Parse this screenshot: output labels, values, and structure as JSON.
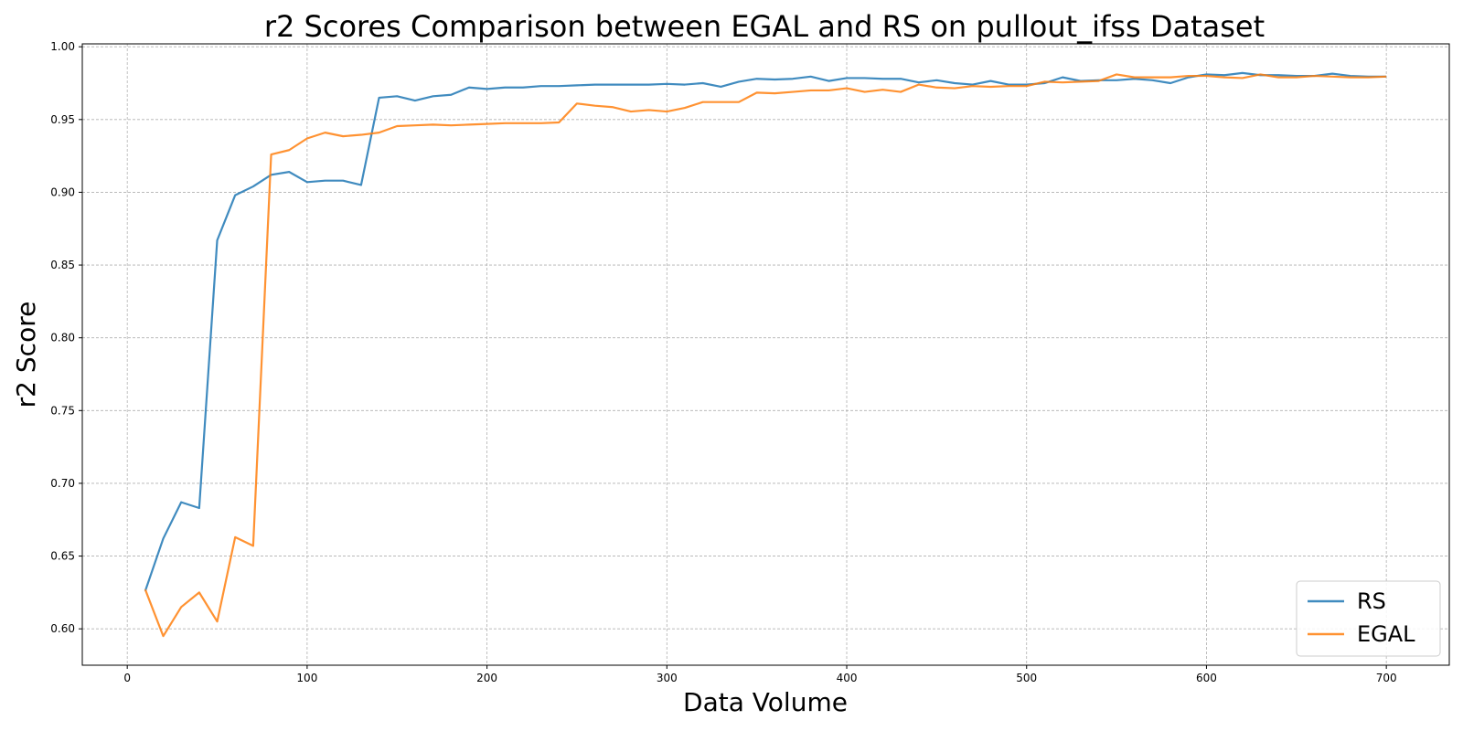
{
  "chart_data": {
    "type": "line",
    "title": "r2 Scores Comparison between EGAL and RS on pullout_ifss Dataset",
    "xlabel": "Data Volume",
    "ylabel": "r2 Score",
    "xlim": [
      -25,
      735
    ],
    "ylim": [
      0.575,
      1.002
    ],
    "xticks": [
      0,
      100,
      200,
      300,
      400,
      500,
      600,
      700
    ],
    "yticks": [
      0.6,
      0.65,
      0.7,
      0.75,
      0.8,
      0.85,
      0.9,
      0.95,
      1.0
    ],
    "grid": true,
    "legend_position": "bottom-right",
    "x": [
      10,
      20,
      30,
      40,
      50,
      60,
      70,
      80,
      90,
      100,
      110,
      120,
      130,
      140,
      150,
      160,
      170,
      180,
      190,
      200,
      210,
      220,
      230,
      240,
      250,
      260,
      270,
      280,
      290,
      300,
      310,
      320,
      330,
      340,
      350,
      360,
      370,
      380,
      390,
      400,
      410,
      420,
      430,
      440,
      450,
      460,
      470,
      480,
      490,
      500,
      510,
      520,
      530,
      540,
      550,
      560,
      570,
      580,
      590,
      600,
      610,
      620,
      630,
      640,
      650,
      660,
      670,
      680,
      690,
      700
    ],
    "series": [
      {
        "name": "RS",
        "color": "#1f77b4",
        "values": [
          0.626,
          0.662,
          0.687,
          0.683,
          0.867,
          0.898,
          0.904,
          0.912,
          0.914,
          0.907,
          0.908,
          0.908,
          0.905,
          0.965,
          0.966,
          0.963,
          0.966,
          0.967,
          0.972,
          0.971,
          0.972,
          0.972,
          0.973,
          0.973,
          0.9735,
          0.974,
          0.974,
          0.974,
          0.974,
          0.9745,
          0.974,
          0.975,
          0.9725,
          0.976,
          0.978,
          0.9775,
          0.978,
          0.9795,
          0.9765,
          0.9785,
          0.9785,
          0.978,
          0.978,
          0.9755,
          0.977,
          0.975,
          0.974,
          0.9765,
          0.974,
          0.974,
          0.975,
          0.979,
          0.9765,
          0.977,
          0.977,
          0.978,
          0.977,
          0.975,
          0.979,
          0.981,
          0.9805,
          0.982,
          0.9805,
          0.9805,
          0.98,
          0.98,
          0.9815,
          0.98,
          0.9795,
          0.9795
        ]
      },
      {
        "name": "EGAL",
        "color": "#ff7f0e",
        "values": [
          0.627,
          0.595,
          0.615,
          0.625,
          0.605,
          0.663,
          0.657,
          0.926,
          0.929,
          0.937,
          0.941,
          0.9385,
          0.9395,
          0.941,
          0.9455,
          0.946,
          0.9465,
          0.946,
          0.9465,
          0.947,
          0.9475,
          0.9475,
          0.9475,
          0.948,
          0.961,
          0.9595,
          0.9585,
          0.9555,
          0.9565,
          0.9555,
          0.958,
          0.962,
          0.962,
          0.962,
          0.9685,
          0.968,
          0.969,
          0.97,
          0.97,
          0.9715,
          0.969,
          0.9705,
          0.969,
          0.974,
          0.972,
          0.9715,
          0.973,
          0.9725,
          0.973,
          0.973,
          0.976,
          0.9755,
          0.976,
          0.9765,
          0.981,
          0.979,
          0.979,
          0.979,
          0.98,
          0.98,
          0.979,
          0.9785,
          0.981,
          0.979,
          0.979,
          0.98,
          0.9795,
          0.979,
          0.979,
          0.9795
        ]
      }
    ]
  }
}
